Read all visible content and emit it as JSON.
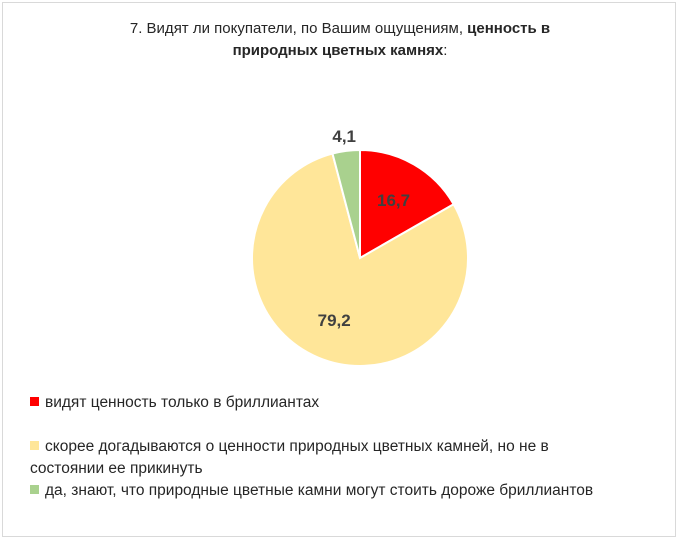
{
  "title": {
    "normal": "7. Видят ли покупатели, по Вашим ощущениям, ",
    "bold_1": "ценность в",
    "bold_2": "природных цветных камнях",
    "tail": ":"
  },
  "chart_data": {
    "type": "pie",
    "title": "7. Видят ли покупатели, по Вашим ощущениям, ценность в природных цветных камнях:",
    "start_angle_deg": 0,
    "direction": "clockwise",
    "slices": [
      {
        "label": "видят ценность только в бриллиантах",
        "value": 16.7,
        "display": "16,7",
        "color": "#ff0000"
      },
      {
        "label": "скорее догадываются о ценности природных цветных камней, но не в состоянии ее прикинуть",
        "value": 79.2,
        "display": "79,2",
        "color": "#ffe699"
      },
      {
        "label": "да, знают, что природные цветные камни могут стоить дороже бриллиантов",
        "value": 4.1,
        "display": "4,1",
        "color": "#a9d18e"
      }
    ],
    "legend_position": "bottom"
  },
  "legend": [
    {
      "line1": "видят ценность только в бриллиантах",
      "line2": ""
    },
    {
      "line1": "скорее догадываются о ценности природных цветных камней, но не в",
      "line2": "состоянии ее прикинуть"
    },
    {
      "line1": "да, знают, что природные цветные камни могут стоить дороже бриллиантов",
      "line2": ""
    }
  ]
}
